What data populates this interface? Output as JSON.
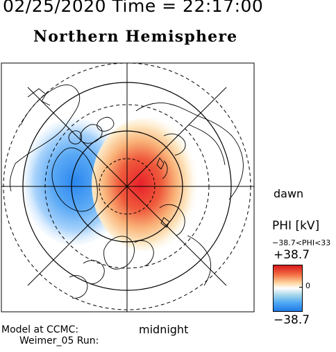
{
  "header": {
    "datetime": "02/25/2020 Time = 22:17:00",
    "title": "Northern Hemisphere"
  },
  "labels": {
    "dawn": "dawn",
    "midnight": "midnight",
    "model_line1": "Model at CCMC:",
    "model_line2": "Weimer_05 Run:"
  },
  "legend": {
    "title": "PHI [kV]",
    "range": "−38.7<PHI<33",
    "max": "+38.7",
    "min": "−38.7",
    "zero": "0"
  },
  "colors": {
    "positive": "#e8202a",
    "negative": "#1f7ae8",
    "outline": "#000000"
  }
}
